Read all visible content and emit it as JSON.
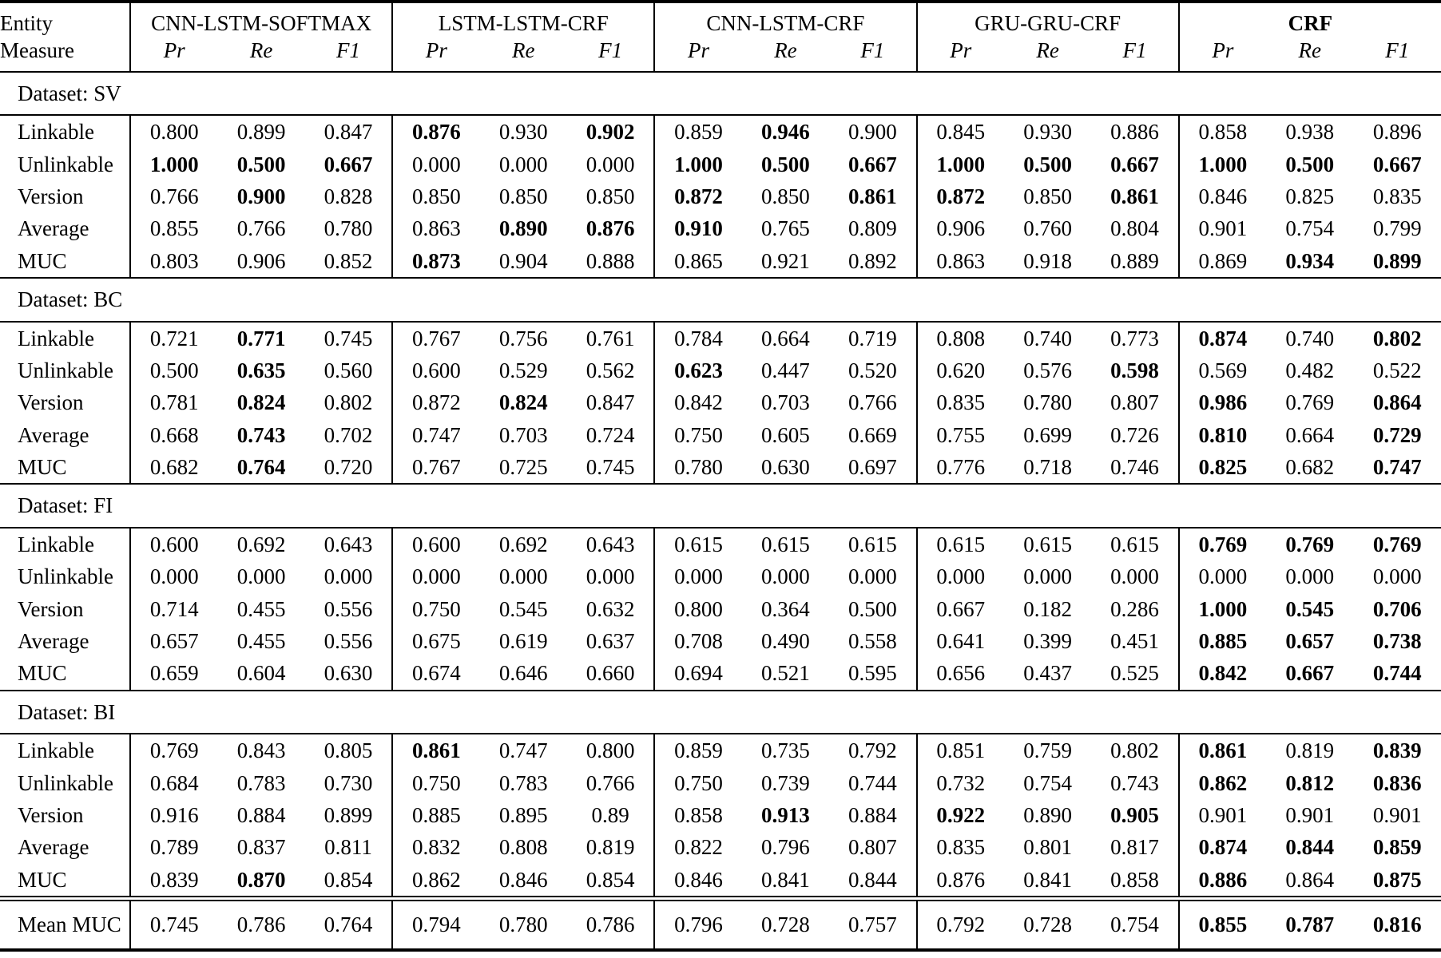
{
  "table": {
    "entity_label": "Entity",
    "measure_label": "Measure",
    "measures": [
      "Pr",
      "Re",
      "F1"
    ],
    "models": [
      {
        "name": "CNN-LSTM-SOFTMAX",
        "bold": false
      },
      {
        "name": "LSTM-LSTM-CRF",
        "bold": false
      },
      {
        "name": "CNN-LSTM-CRF",
        "bold": false
      },
      {
        "name": "GRU-GRU-CRF",
        "bold": false
      },
      {
        "name": "CRF",
        "bold": true
      }
    ],
    "sections": [
      {
        "label": "Dataset: SV",
        "rows": [
          {
            "entity": "Linkable",
            "values": [
              "0.800",
              "0.899",
              "0.847",
              "0.876",
              "0.930",
              "0.902",
              "0.859",
              "0.946",
              "0.900",
              "0.845",
              "0.930",
              "0.886",
              "0.858",
              "0.938",
              "0.896"
            ],
            "bold": [
              0,
              0,
              0,
              1,
              0,
              1,
              0,
              1,
              0,
              0,
              0,
              0,
              0,
              0,
              0
            ]
          },
          {
            "entity": "Unlinkable",
            "values": [
              "1.000",
              "0.500",
              "0.667",
              "0.000",
              "0.000",
              "0.000",
              "1.000",
              "0.500",
              "0.667",
              "1.000",
              "0.500",
              "0.667",
              "1.000",
              "0.500",
              "0.667"
            ],
            "bold": [
              1,
              1,
              1,
              0,
              0,
              0,
              1,
              1,
              1,
              1,
              1,
              1,
              1,
              1,
              1
            ]
          },
          {
            "entity": "Version",
            "values": [
              "0.766",
              "0.900",
              "0.828",
              "0.850",
              "0.850",
              "0.850",
              "0.872",
              "0.850",
              "0.861",
              "0.872",
              "0.850",
              "0.861",
              "0.846",
              "0.825",
              "0.835"
            ],
            "bold": [
              0,
              1,
              0,
              0,
              0,
              0,
              1,
              0,
              1,
              1,
              0,
              1,
              0,
              0,
              0
            ]
          },
          {
            "entity": "Average",
            "values": [
              "0.855",
              "0.766",
              "0.780",
              "0.863",
              "0.890",
              "0.876",
              "0.910",
              "0.765",
              "0.809",
              "0.906",
              "0.760",
              "0.804",
              "0.901",
              "0.754",
              "0.799"
            ],
            "bold": [
              0,
              0,
              0,
              0,
              1,
              1,
              1,
              0,
              0,
              0,
              0,
              0,
              0,
              0,
              0
            ]
          },
          {
            "entity": "MUC",
            "values": [
              "0.803",
              "0.906",
              "0.852",
              "0.873",
              "0.904",
              "0.888",
              "0.865",
              "0.921",
              "0.892",
              "0.863",
              "0.918",
              "0.889",
              "0.869",
              "0.934",
              "0.899"
            ],
            "bold": [
              0,
              0,
              0,
              1,
              0,
              0,
              0,
              0,
              0,
              0,
              0,
              0,
              0,
              1,
              1
            ]
          }
        ]
      },
      {
        "label": "Dataset: BC",
        "rows": [
          {
            "entity": "Linkable",
            "values": [
              "0.721",
              "0.771",
              "0.745",
              "0.767",
              "0.756",
              "0.761",
              "0.784",
              "0.664",
              "0.719",
              "0.808",
              "0.740",
              "0.773",
              "0.874",
              "0.740",
              "0.802"
            ],
            "bold": [
              0,
              1,
              0,
              0,
              0,
              0,
              0,
              0,
              0,
              0,
              0,
              0,
              1,
              0,
              1
            ]
          },
          {
            "entity": "Unlinkable",
            "values": [
              "0.500",
              "0.635",
              "0.560",
              "0.600",
              "0.529",
              "0.562",
              "0.623",
              "0.447",
              "0.520",
              "0.620",
              "0.576",
              "0.598",
              "0.569",
              "0.482",
              "0.522"
            ],
            "bold": [
              0,
              1,
              0,
              0,
              0,
              0,
              1,
              0,
              0,
              0,
              0,
              1,
              0,
              0,
              0
            ]
          },
          {
            "entity": "Version",
            "values": [
              "0.781",
              "0.824",
              "0.802",
              "0.872",
              "0.824",
              "0.847",
              "0.842",
              "0.703",
              "0.766",
              "0.835",
              "0.780",
              "0.807",
              "0.986",
              "0.769",
              "0.864"
            ],
            "bold": [
              0,
              1,
              0,
              0,
              1,
              0,
              0,
              0,
              0,
              0,
              0,
              0,
              1,
              0,
              1
            ]
          },
          {
            "entity": "Average",
            "values": [
              "0.668",
              "0.743",
              "0.702",
              "0.747",
              "0.703",
              "0.724",
              "0.750",
              "0.605",
              "0.669",
              "0.755",
              "0.699",
              "0.726",
              "0.810",
              "0.664",
              "0.729"
            ],
            "bold": [
              0,
              1,
              0,
              0,
              0,
              0,
              0,
              0,
              0,
              0,
              0,
              0,
              1,
              0,
              1
            ]
          },
          {
            "entity": "MUC",
            "values": [
              "0.682",
              "0.764",
              "0.720",
              "0.767",
              "0.725",
              "0.745",
              "0.780",
              "0.630",
              "0.697",
              "0.776",
              "0.718",
              "0.746",
              "0.825",
              "0.682",
              "0.747"
            ],
            "bold": [
              0,
              1,
              0,
              0,
              0,
              0,
              0,
              0,
              0,
              0,
              0,
              0,
              1,
              0,
              1
            ]
          }
        ]
      },
      {
        "label": "Dataset: FI",
        "rows": [
          {
            "entity": "Linkable",
            "values": [
              "0.600",
              "0.692",
              "0.643",
              "0.600",
              "0.692",
              "0.643",
              "0.615",
              "0.615",
              "0.615",
              "0.615",
              "0.615",
              "0.615",
              "0.769",
              "0.769",
              "0.769"
            ],
            "bold": [
              0,
              0,
              0,
              0,
              0,
              0,
              0,
              0,
              0,
              0,
              0,
              0,
              1,
              1,
              1
            ]
          },
          {
            "entity": "Unlinkable",
            "values": [
              "0.000",
              "0.000",
              "0.000",
              "0.000",
              "0.000",
              "0.000",
              "0.000",
              "0.000",
              "0.000",
              "0.000",
              "0.000",
              "0.000",
              "0.000",
              "0.000",
              "0.000"
            ],
            "bold": [
              0,
              0,
              0,
              0,
              0,
              0,
              0,
              0,
              0,
              0,
              0,
              0,
              0,
              0,
              0
            ]
          },
          {
            "entity": "Version",
            "values": [
              "0.714",
              "0.455",
              "0.556",
              "0.750",
              "0.545",
              "0.632",
              "0.800",
              "0.364",
              "0.500",
              "0.667",
              "0.182",
              "0.286",
              "1.000",
              "0.545",
              "0.706"
            ],
            "bold": [
              0,
              0,
              0,
              0,
              0,
              0,
              0,
              0,
              0,
              0,
              0,
              0,
              1,
              1,
              1
            ]
          },
          {
            "entity": "Average",
            "values": [
              "0.657",
              "0.455",
              "0.556",
              "0.675",
              "0.619",
              "0.637",
              "0.708",
              "0.490",
              "0.558",
              "0.641",
              "0.399",
              "0.451",
              "0.885",
              "0.657",
              "0.738"
            ],
            "bold": [
              0,
              0,
              0,
              0,
              0,
              0,
              0,
              0,
              0,
              0,
              0,
              0,
              1,
              1,
              1
            ]
          },
          {
            "entity": "MUC",
            "values": [
              "0.659",
              "0.604",
              "0.630",
              "0.674",
              "0.646",
              "0.660",
              "0.694",
              "0.521",
              "0.595",
              "0.656",
              "0.437",
              "0.525",
              "0.842",
              "0.667",
              "0.744"
            ],
            "bold": [
              0,
              0,
              0,
              0,
              0,
              0,
              0,
              0,
              0,
              0,
              0,
              0,
              1,
              1,
              1
            ]
          }
        ]
      },
      {
        "label": "Dataset: BI",
        "rows": [
          {
            "entity": "Linkable",
            "values": [
              "0.769",
              "0.843",
              "0.805",
              "0.861",
              "0.747",
              "0.800",
              "0.859",
              "0.735",
              "0.792",
              "0.851",
              "0.759",
              "0.802",
              "0.861",
              "0.819",
              "0.839"
            ],
            "bold": [
              0,
              0,
              0,
              1,
              0,
              0,
              0,
              0,
              0,
              0,
              0,
              0,
              1,
              0,
              1
            ]
          },
          {
            "entity": "Unlinkable",
            "values": [
              "0.684",
              "0.783",
              "0.730",
              "0.750",
              "0.783",
              "0.766",
              "0.750",
              "0.739",
              "0.744",
              "0.732",
              "0.754",
              "0.743",
              "0.862",
              "0.812",
              "0.836"
            ],
            "bold": [
              0,
              0,
              0,
              0,
              0,
              0,
              0,
              0,
              0,
              0,
              0,
              0,
              1,
              1,
              1
            ]
          },
          {
            "entity": "Version",
            "values": [
              "0.916",
              "0.884",
              "0.899",
              "0.885",
              "0.895",
              "0.89",
              "0.858",
              "0.913",
              "0.884",
              "0.922",
              "0.890",
              "0.905",
              "0.901",
              "0.901",
              "0.901"
            ],
            "bold": [
              0,
              0,
              0,
              0,
              0,
              0,
              0,
              1,
              0,
              1,
              0,
              1,
              0,
              0,
              0
            ]
          },
          {
            "entity": "Average",
            "values": [
              "0.789",
              "0.837",
              "0.811",
              "0.832",
              "0.808",
              "0.819",
              "0.822",
              "0.796",
              "0.807",
              "0.835",
              "0.801",
              "0.817",
              "0.874",
              "0.844",
              "0.859"
            ],
            "bold": [
              0,
              0,
              0,
              0,
              0,
              0,
              0,
              0,
              0,
              0,
              0,
              0,
              1,
              1,
              1
            ]
          },
          {
            "entity": "MUC",
            "values": [
              "0.839",
              "0.870",
              "0.854",
              "0.862",
              "0.846",
              "0.854",
              "0.846",
              "0.841",
              "0.844",
              "0.876",
              "0.841",
              "0.858",
              "0.886",
              "0.864",
              "0.875"
            ],
            "bold": [
              0,
              1,
              0,
              0,
              0,
              0,
              0,
              0,
              0,
              0,
              0,
              0,
              1,
              0,
              1
            ]
          }
        ]
      }
    ],
    "footer": {
      "entity": "Mean MUC",
      "values": [
        "0.745",
        "0.786",
        "0.764",
        "0.794",
        "0.780",
        "0.786",
        "0.796",
        "0.728",
        "0.757",
        "0.792",
        "0.728",
        "0.754",
        "0.855",
        "0.787",
        "0.816"
      ],
      "bold": [
        0,
        0,
        0,
        0,
        0,
        0,
        0,
        0,
        0,
        0,
        0,
        0,
        1,
        1,
        1
      ]
    }
  },
  "colors": {
    "text": "#000000",
    "background": "#ffffff",
    "rule": "#000000"
  }
}
